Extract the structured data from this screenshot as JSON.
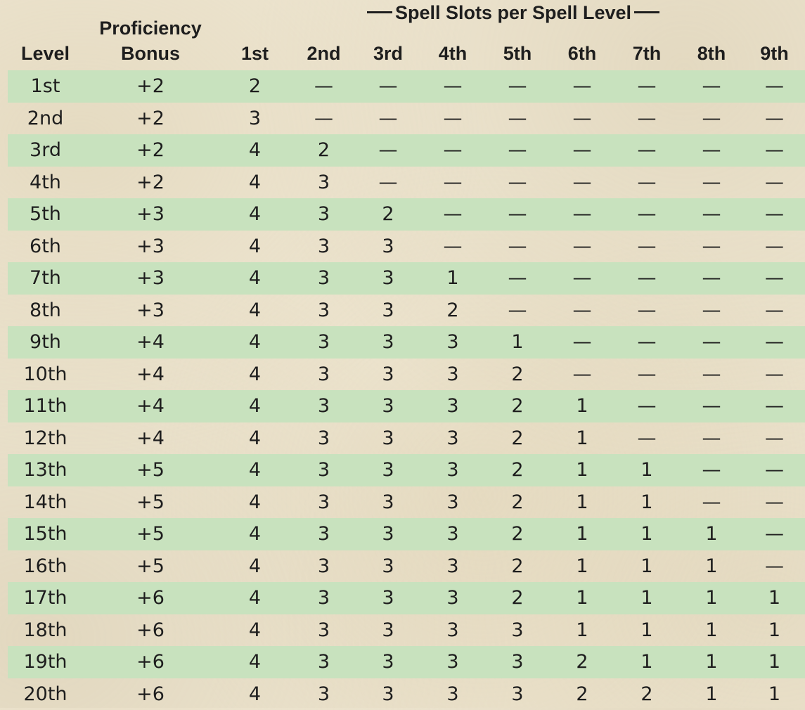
{
  "caption": "Spell Slots per Spell Level",
  "headers": {
    "level": "Level",
    "proficiency_line1": "Proficiency",
    "proficiency_line2": "Bonus",
    "slots": [
      "1st",
      "2nd",
      "3rd",
      "4th",
      "5th",
      "6th",
      "7th",
      "8th",
      "9th"
    ]
  },
  "colors": {
    "row_band": "#c8e2be",
    "background": "#efe7d3",
    "text": "#1e1e1e"
  },
  "rows": [
    {
      "level": "1st",
      "bonus": "+2",
      "slots": [
        "2",
        "—",
        "—",
        "—",
        "—",
        "—",
        "—",
        "—",
        "—"
      ]
    },
    {
      "level": "2nd",
      "bonus": "+2",
      "slots": [
        "3",
        "—",
        "—",
        "—",
        "—",
        "—",
        "—",
        "—",
        "—"
      ]
    },
    {
      "level": "3rd",
      "bonus": "+2",
      "slots": [
        "4",
        "2",
        "—",
        "—",
        "—",
        "—",
        "—",
        "—",
        "—"
      ]
    },
    {
      "level": "4th",
      "bonus": "+2",
      "slots": [
        "4",
        "3",
        "—",
        "—",
        "—",
        "—",
        "—",
        "—",
        "—"
      ]
    },
    {
      "level": "5th",
      "bonus": "+3",
      "slots": [
        "4",
        "3",
        "2",
        "—",
        "—",
        "—",
        "—",
        "—",
        "—"
      ]
    },
    {
      "level": "6th",
      "bonus": "+3",
      "slots": [
        "4",
        "3",
        "3",
        "—",
        "—",
        "—",
        "—",
        "—",
        "—"
      ]
    },
    {
      "level": "7th",
      "bonus": "+3",
      "slots": [
        "4",
        "3",
        "3",
        "1",
        "—",
        "—",
        "—",
        "—",
        "—"
      ]
    },
    {
      "level": "8th",
      "bonus": "+3",
      "slots": [
        "4",
        "3",
        "3",
        "2",
        "—",
        "—",
        "—",
        "—",
        "—"
      ]
    },
    {
      "level": "9th",
      "bonus": "+4",
      "slots": [
        "4",
        "3",
        "3",
        "3",
        "1",
        "—",
        "—",
        "—",
        "—"
      ]
    },
    {
      "level": "10th",
      "bonus": "+4",
      "slots": [
        "4",
        "3",
        "3",
        "3",
        "2",
        "—",
        "—",
        "—",
        "—"
      ]
    },
    {
      "level": "11th",
      "bonus": "+4",
      "slots": [
        "4",
        "3",
        "3",
        "3",
        "2",
        "1",
        "—",
        "—",
        "—"
      ]
    },
    {
      "level": "12th",
      "bonus": "+4",
      "slots": [
        "4",
        "3",
        "3",
        "3",
        "2",
        "1",
        "—",
        "—",
        "—"
      ]
    },
    {
      "level": "13th",
      "bonus": "+5",
      "slots": [
        "4",
        "3",
        "3",
        "3",
        "2",
        "1",
        "1",
        "—",
        "—"
      ]
    },
    {
      "level": "14th",
      "bonus": "+5",
      "slots": [
        "4",
        "3",
        "3",
        "3",
        "2",
        "1",
        "1",
        "—",
        "—"
      ]
    },
    {
      "level": "15th",
      "bonus": "+5",
      "slots": [
        "4",
        "3",
        "3",
        "3",
        "2",
        "1",
        "1",
        "1",
        "—"
      ]
    },
    {
      "level": "16th",
      "bonus": "+5",
      "slots": [
        "4",
        "3",
        "3",
        "3",
        "2",
        "1",
        "1",
        "1",
        "—"
      ]
    },
    {
      "level": "17th",
      "bonus": "+6",
      "slots": [
        "4",
        "3",
        "3",
        "3",
        "2",
        "1",
        "1",
        "1",
        "1"
      ]
    },
    {
      "level": "18th",
      "bonus": "+6",
      "slots": [
        "4",
        "3",
        "3",
        "3",
        "3",
        "1",
        "1",
        "1",
        "1"
      ]
    },
    {
      "level": "19th",
      "bonus": "+6",
      "slots": [
        "4",
        "3",
        "3",
        "3",
        "3",
        "2",
        "1",
        "1",
        "1"
      ]
    },
    {
      "level": "20th",
      "bonus": "+6",
      "slots": [
        "4",
        "3",
        "3",
        "3",
        "3",
        "2",
        "2",
        "1",
        "1"
      ]
    }
  ]
}
